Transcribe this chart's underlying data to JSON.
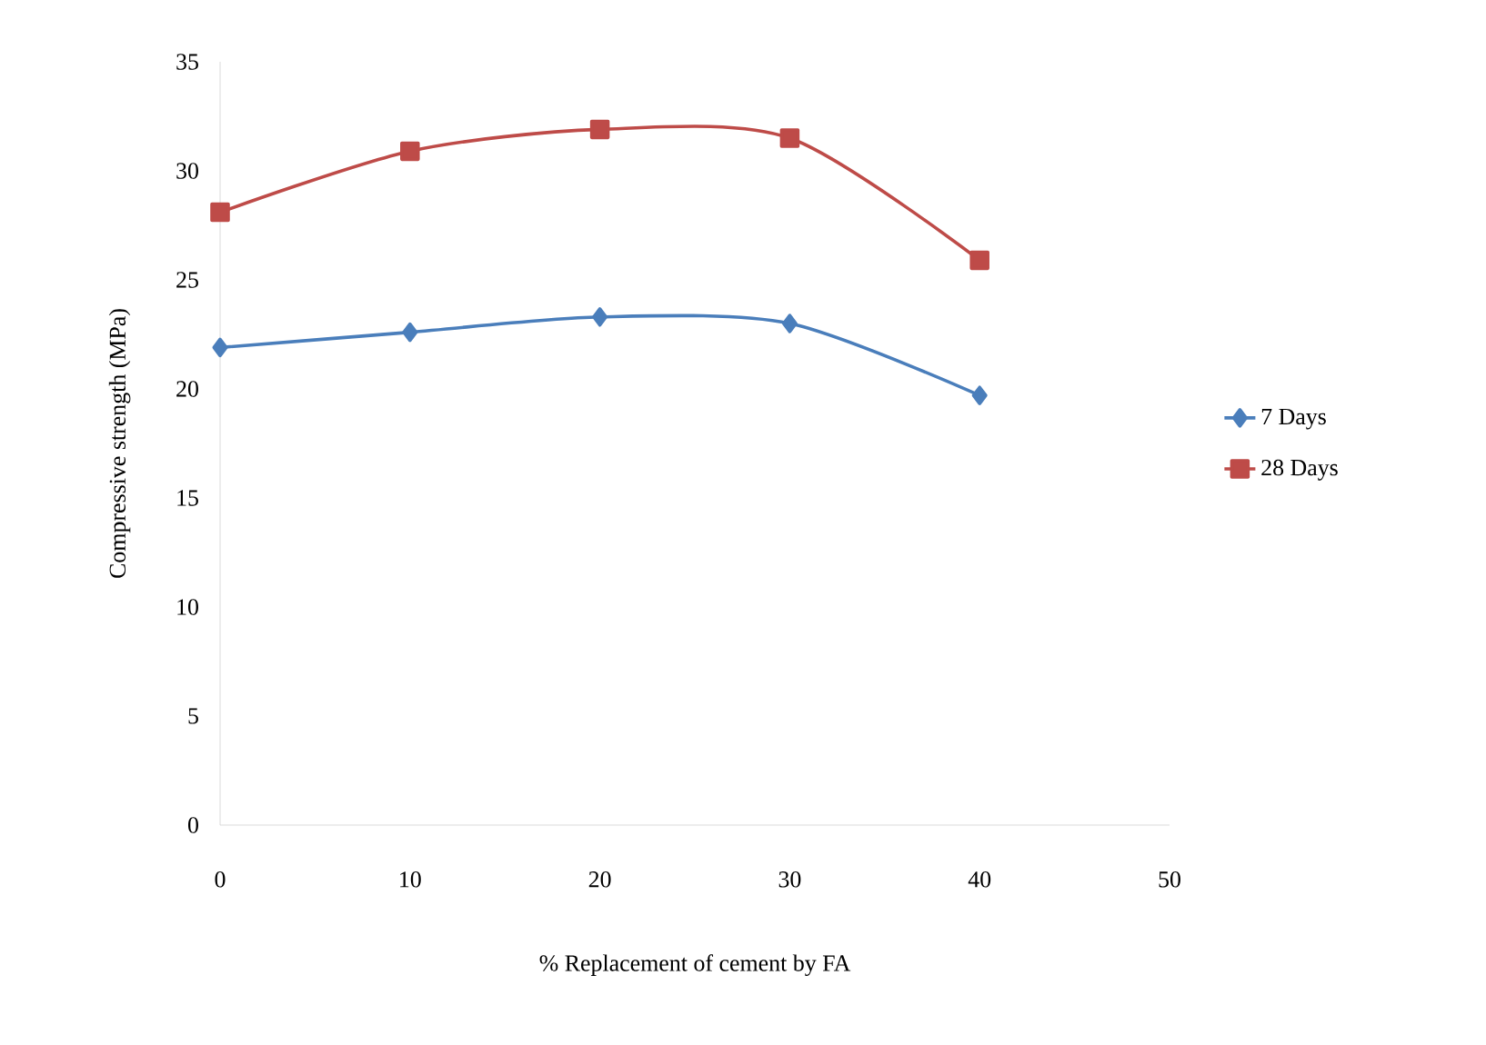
{
  "chart_data": {
    "type": "line",
    "xlabel": "% Replacement of cement by FA",
    "ylabel": "Compressive strength (MPa)",
    "x": [
      0,
      10,
      20,
      30,
      40
    ],
    "series": [
      {
        "name": "7 Days",
        "color": "#4a7ebb",
        "marker": "diamond",
        "values": [
          21.9,
          22.6,
          23.3,
          23.0,
          19.7
        ]
      },
      {
        "name": "28 Days",
        "color": "#be4b48",
        "marker": "square",
        "values": [
          28.1,
          30.9,
          31.9,
          31.5,
          25.9
        ]
      }
    ],
    "xlim": [
      0,
      50
    ],
    "xticks": [
      0,
      10,
      20,
      30,
      40,
      50
    ],
    "ylim": [
      0,
      35
    ],
    "yticks": [
      0,
      5,
      10,
      15,
      20,
      25,
      30,
      35
    ],
    "grid": false,
    "legend": "right"
  }
}
